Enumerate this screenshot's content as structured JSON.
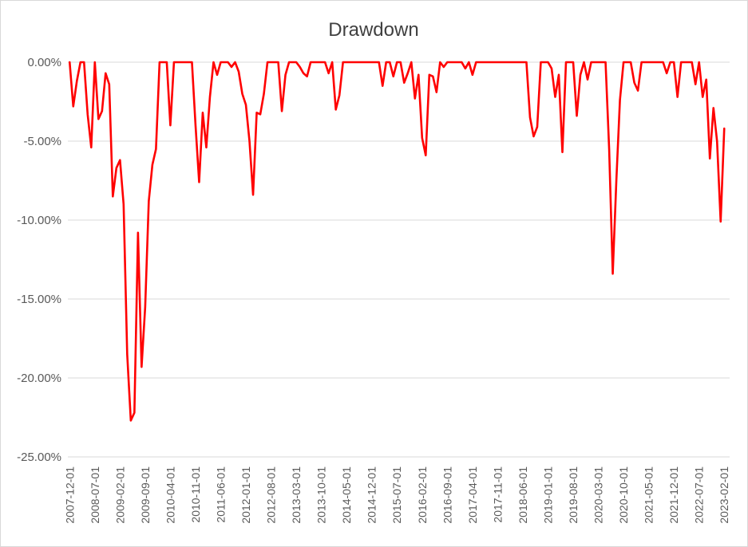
{
  "chart_data": {
    "type": "line",
    "title": "Drawdown",
    "xlabel": "",
    "ylabel": "",
    "ylim": [
      -0.25,
      0
    ],
    "yticks": [
      0,
      -0.05,
      -0.1,
      -0.15,
      -0.2,
      -0.25
    ],
    "ytick_labels": [
      "0.00%",
      "-5.00%",
      "-10.00%",
      "-15.00%",
      "-20.00%",
      "-25.00%"
    ],
    "grid": "horizontal",
    "legend": "none",
    "x_start": "2007-12",
    "x_end": "2023-04",
    "xtick_labels": [
      "2007-12-01",
      "2008-07-01",
      "2009-02-01",
      "2009-09-01",
      "2010-04-01",
      "2010-11-01",
      "2011-06-01",
      "2012-01-01",
      "2012-08-01",
      "2013-03-01",
      "2013-10-01",
      "2014-05-01",
      "2014-12-01",
      "2015-07-01",
      "2016-02-01",
      "2016-09-01",
      "2017-04-01",
      "2017-11-01",
      "2018-06-01",
      "2019-01-01",
      "2019-08-01",
      "2020-03-01",
      "2020-10-01",
      "2021-05-01",
      "2021-12-01",
      "2022-07-01",
      "2023-02-01"
    ],
    "series": [
      {
        "color": "#ff0000",
        "points": [
          {
            "x": "2007-12",
            "y": 0.0
          },
          {
            "x": "2008-01",
            "y": -0.028
          },
          {
            "x": "2008-02",
            "y": -0.012
          },
          {
            "x": "2008-03",
            "y": 0.0
          },
          {
            "x": "2008-04",
            "y": 0.0
          },
          {
            "x": "2008-05",
            "y": -0.033
          },
          {
            "x": "2008-06",
            "y": -0.054
          },
          {
            "x": "2008-07",
            "y": 0.0
          },
          {
            "x": "2008-08",
            "y": -0.036
          },
          {
            "x": "2008-09",
            "y": -0.031
          },
          {
            "x": "2008-10",
            "y": -0.007
          },
          {
            "x": "2008-11",
            "y": -0.014
          },
          {
            "x": "2008-12",
            "y": -0.085
          },
          {
            "x": "2009-01",
            "y": -0.067
          },
          {
            "x": "2009-02",
            "y": -0.062
          },
          {
            "x": "2009-03",
            "y": -0.09
          },
          {
            "x": "2009-04",
            "y": -0.185
          },
          {
            "x": "2009-05",
            "y": -0.227
          },
          {
            "x": "2009-06",
            "y": -0.222
          },
          {
            "x": "2009-07",
            "y": -0.108
          },
          {
            "x": "2009-08",
            "y": -0.193
          },
          {
            "x": "2009-09",
            "y": -0.155
          },
          {
            "x": "2009-10",
            "y": -0.088
          },
          {
            "x": "2009-11",
            "y": -0.065
          },
          {
            "x": "2009-12",
            "y": -0.055
          },
          {
            "x": "2010-01",
            "y": 0.0
          },
          {
            "x": "2010-02",
            "y": 0.0
          },
          {
            "x": "2010-03",
            "y": 0.0
          },
          {
            "x": "2010-04",
            "y": -0.04
          },
          {
            "x": "2010-05",
            "y": 0.0
          },
          {
            "x": "2010-06",
            "y": 0.0
          },
          {
            "x": "2010-07",
            "y": 0.0
          },
          {
            "x": "2010-08",
            "y": 0.0
          },
          {
            "x": "2010-09",
            "y": 0.0
          },
          {
            "x": "2010-10",
            "y": 0.0
          },
          {
            "x": "2010-11",
            "y": -0.04
          },
          {
            "x": "2010-12",
            "y": -0.076
          },
          {
            "x": "2011-01",
            "y": -0.032
          },
          {
            "x": "2011-02",
            "y": -0.054
          },
          {
            "x": "2011-03",
            "y": -0.022
          },
          {
            "x": "2011-04",
            "y": 0.0
          },
          {
            "x": "2011-05",
            "y": -0.008
          },
          {
            "x": "2011-06",
            "y": 0.0
          },
          {
            "x": "2011-07",
            "y": 0.0
          },
          {
            "x": "2011-08",
            "y": 0.0
          },
          {
            "x": "2011-09",
            "y": -0.003
          },
          {
            "x": "2011-10",
            "y": 0.0
          },
          {
            "x": "2011-11",
            "y": -0.006
          },
          {
            "x": "2011-12",
            "y": -0.02
          },
          {
            "x": "2012-01",
            "y": -0.027
          },
          {
            "x": "2012-02",
            "y": -0.05
          },
          {
            "x": "2012-03",
            "y": -0.084
          },
          {
            "x": "2012-04",
            "y": -0.032
          },
          {
            "x": "2012-05",
            "y": -0.033
          },
          {
            "x": "2012-06",
            "y": -0.02
          },
          {
            "x": "2012-07",
            "y": 0.0
          },
          {
            "x": "2012-08",
            "y": 0.0
          },
          {
            "x": "2012-09",
            "y": 0.0
          },
          {
            "x": "2012-10",
            "y": 0.0
          },
          {
            "x": "2012-11",
            "y": -0.031
          },
          {
            "x": "2012-12",
            "y": -0.008
          },
          {
            "x": "2013-01",
            "y": 0.0
          },
          {
            "x": "2013-02",
            "y": 0.0
          },
          {
            "x": "2013-03",
            "y": 0.0
          },
          {
            "x": "2013-04",
            "y": -0.003
          },
          {
            "x": "2013-05",
            "y": -0.007
          },
          {
            "x": "2013-06",
            "y": -0.009
          },
          {
            "x": "2013-07",
            "y": 0.0
          },
          {
            "x": "2013-08",
            "y": 0.0
          },
          {
            "x": "2013-09",
            "y": 0.0
          },
          {
            "x": "2013-10",
            "y": 0.0
          },
          {
            "x": "2013-11",
            "y": 0.0
          },
          {
            "x": "2013-12",
            "y": -0.007
          },
          {
            "x": "2014-01",
            "y": 0.0
          },
          {
            "x": "2014-02",
            "y": -0.03
          },
          {
            "x": "2014-03",
            "y": -0.021
          },
          {
            "x": "2014-04",
            "y": 0.0
          },
          {
            "x": "2014-05",
            "y": 0.0
          },
          {
            "x": "2014-06",
            "y": 0.0
          },
          {
            "x": "2014-07",
            "y": 0.0
          },
          {
            "x": "2014-08",
            "y": 0.0
          },
          {
            "x": "2014-09",
            "y": 0.0
          },
          {
            "x": "2014-10",
            "y": 0.0
          },
          {
            "x": "2014-11",
            "y": 0.0
          },
          {
            "x": "2014-12",
            "y": 0.0
          },
          {
            "x": "2015-01",
            "y": 0.0
          },
          {
            "x": "2015-02",
            "y": 0.0
          },
          {
            "x": "2015-03",
            "y": -0.015
          },
          {
            "x": "2015-04",
            "y": 0.0
          },
          {
            "x": "2015-05",
            "y": 0.0
          },
          {
            "x": "2015-06",
            "y": -0.009
          },
          {
            "x": "2015-07",
            "y": 0.0
          },
          {
            "x": "2015-08",
            "y": 0.0
          },
          {
            "x": "2015-09",
            "y": -0.013
          },
          {
            "x": "2015-10",
            "y": -0.007
          },
          {
            "x": "2015-11",
            "y": 0.0
          },
          {
            "x": "2015-12",
            "y": -0.023
          },
          {
            "x": "2016-01",
            "y": -0.008
          },
          {
            "x": "2016-02",
            "y": -0.048
          },
          {
            "x": "2016-03",
            "y": -0.059
          },
          {
            "x": "2016-04",
            "y": -0.008
          },
          {
            "x": "2016-05",
            "y": -0.009
          },
          {
            "x": "2016-06",
            "y": -0.019
          },
          {
            "x": "2016-07",
            "y": 0.0
          },
          {
            "x": "2016-08",
            "y": -0.003
          },
          {
            "x": "2016-09",
            "y": 0.0
          },
          {
            "x": "2016-10",
            "y": 0.0
          },
          {
            "x": "2016-11",
            "y": 0.0
          },
          {
            "x": "2016-12",
            "y": 0.0
          },
          {
            "x": "2017-01",
            "y": 0.0
          },
          {
            "x": "2017-02",
            "y": -0.004
          },
          {
            "x": "2017-03",
            "y": 0.0
          },
          {
            "x": "2017-04",
            "y": -0.008
          },
          {
            "x": "2017-05",
            "y": 0.0
          },
          {
            "x": "2017-06",
            "y": 0.0
          },
          {
            "x": "2017-07",
            "y": 0.0
          },
          {
            "x": "2017-08",
            "y": 0.0
          },
          {
            "x": "2017-09",
            "y": 0.0
          },
          {
            "x": "2017-10",
            "y": 0.0
          },
          {
            "x": "2017-11",
            "y": 0.0
          },
          {
            "x": "2017-12",
            "y": 0.0
          },
          {
            "x": "2018-01",
            "y": 0.0
          },
          {
            "x": "2018-02",
            "y": 0.0
          },
          {
            "x": "2018-03",
            "y": 0.0
          },
          {
            "x": "2018-04",
            "y": 0.0
          },
          {
            "x": "2018-05",
            "y": 0.0
          },
          {
            "x": "2018-06",
            "y": 0.0
          },
          {
            "x": "2018-07",
            "y": 0.0
          },
          {
            "x": "2018-08",
            "y": -0.035
          },
          {
            "x": "2018-09",
            "y": -0.047
          },
          {
            "x": "2018-10",
            "y": -0.041
          },
          {
            "x": "2018-11",
            "y": 0.0
          },
          {
            "x": "2018-12",
            "y": 0.0
          },
          {
            "x": "2019-01",
            "y": 0.0
          },
          {
            "x": "2019-02",
            "y": -0.004
          },
          {
            "x": "2019-03",
            "y": -0.022
          },
          {
            "x": "2019-04",
            "y": -0.008
          },
          {
            "x": "2019-05",
            "y": -0.057
          },
          {
            "x": "2019-06",
            "y": 0.0
          },
          {
            "x": "2019-07",
            "y": 0.0
          },
          {
            "x": "2019-08",
            "y": 0.0
          },
          {
            "x": "2019-09",
            "y": -0.034
          },
          {
            "x": "2019-10",
            "y": -0.008
          },
          {
            "x": "2019-11",
            "y": 0.0
          },
          {
            "x": "2019-12",
            "y": -0.011
          },
          {
            "x": "2020-01",
            "y": 0.0
          },
          {
            "x": "2020-02",
            "y": 0.0
          },
          {
            "x": "2020-03",
            "y": 0.0
          },
          {
            "x": "2020-04",
            "y": 0.0
          },
          {
            "x": "2020-05",
            "y": 0.0
          },
          {
            "x": "2020-06",
            "y": -0.055
          },
          {
            "x": "2020-07",
            "y": -0.134
          },
          {
            "x": "2020-08",
            "y": -0.075
          },
          {
            "x": "2020-09",
            "y": -0.024
          },
          {
            "x": "2020-10",
            "y": 0.0
          },
          {
            "x": "2020-11",
            "y": 0.0
          },
          {
            "x": "2020-12",
            "y": 0.0
          },
          {
            "x": "2021-01",
            "y": -0.013
          },
          {
            "x": "2021-02",
            "y": -0.018
          },
          {
            "x": "2021-03",
            "y": 0.0
          },
          {
            "x": "2021-04",
            "y": 0.0
          },
          {
            "x": "2021-05",
            "y": 0.0
          },
          {
            "x": "2021-06",
            "y": 0.0
          },
          {
            "x": "2021-07",
            "y": 0.0
          },
          {
            "x": "2021-08",
            "y": 0.0
          },
          {
            "x": "2021-09",
            "y": 0.0
          },
          {
            "x": "2021-10",
            "y": -0.007
          },
          {
            "x": "2021-11",
            "y": 0.0
          },
          {
            "x": "2021-12",
            "y": 0.0
          },
          {
            "x": "2022-01",
            "y": -0.022
          },
          {
            "x": "2022-02",
            "y": 0.0
          },
          {
            "x": "2022-03",
            "y": 0.0
          },
          {
            "x": "2022-04",
            "y": 0.0
          },
          {
            "x": "2022-05",
            "y": 0.0
          },
          {
            "x": "2022-06",
            "y": -0.014
          },
          {
            "x": "2022-07",
            "y": 0.0
          },
          {
            "x": "2022-08",
            "y": -0.022
          },
          {
            "x": "2022-09",
            "y": -0.011
          },
          {
            "x": "2022-10",
            "y": -0.061
          },
          {
            "x": "2022-11",
            "y": -0.029
          },
          {
            "x": "2022-12",
            "y": -0.05
          },
          {
            "x": "2023-01",
            "y": -0.101
          },
          {
            "x": "2023-02",
            "y": -0.042
          }
        ]
      }
    ]
  }
}
